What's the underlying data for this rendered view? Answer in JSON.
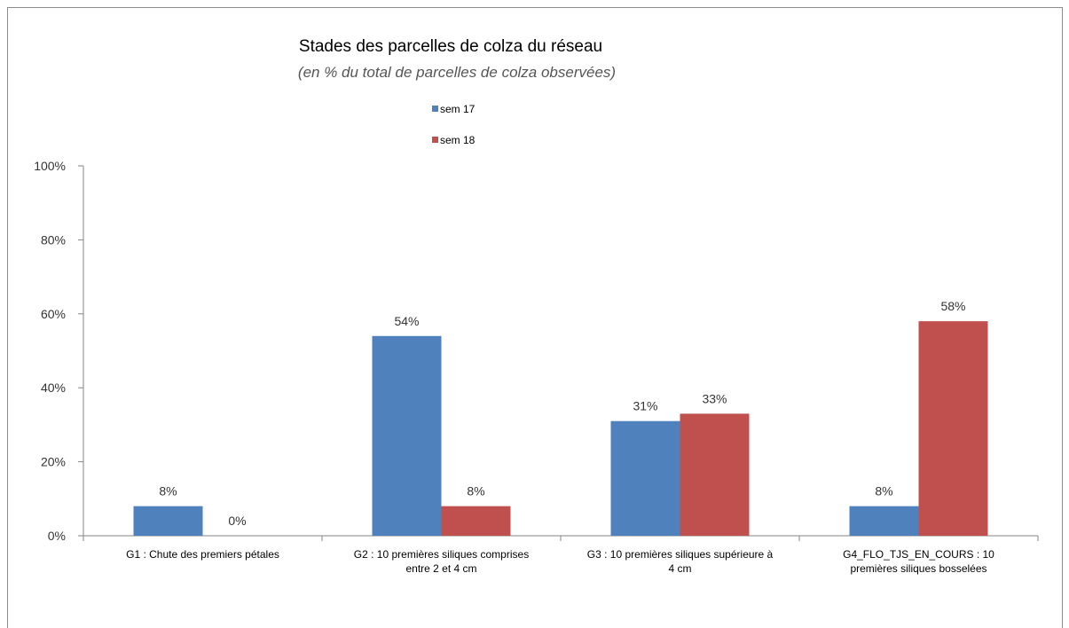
{
  "chart_data": {
    "type": "bar",
    "title": "Stades des parcelles de colza du réseau",
    "subtitle": "(en %  du total de parcelles de colza observées)",
    "categories": [
      [
        "G1 : Chute des premiers pétales"
      ],
      [
        "G2 : 10 premières siliques comprises",
        "entre 2 et 4 cm"
      ],
      [
        "G3 : 10 premières siliques supérieure à",
        "4 cm"
      ],
      [
        "G4_FLO_TJS_EN_COURS : 10",
        "premières siliques bosselées"
      ]
    ],
    "series": [
      {
        "name": "sem 17",
        "color": "#4f81bd",
        "values": [
          8,
          54,
          31,
          8
        ],
        "labels": [
          "8%",
          "54%",
          "31%",
          "8%"
        ]
      },
      {
        "name": "sem 18",
        "color": "#c0504d",
        "values": [
          0,
          8,
          33,
          58
        ],
        "labels": [
          "0%",
          "8%",
          "33%",
          "58%"
        ]
      }
    ],
    "ylim": [
      0,
      100
    ],
    "yticks": [
      0,
      20,
      40,
      60,
      80,
      100
    ],
    "ytick_labels": [
      "0%",
      "20%",
      "40%",
      "60%",
      "80%",
      "100%"
    ],
    "grid": false,
    "legend_position": "top-center"
  }
}
